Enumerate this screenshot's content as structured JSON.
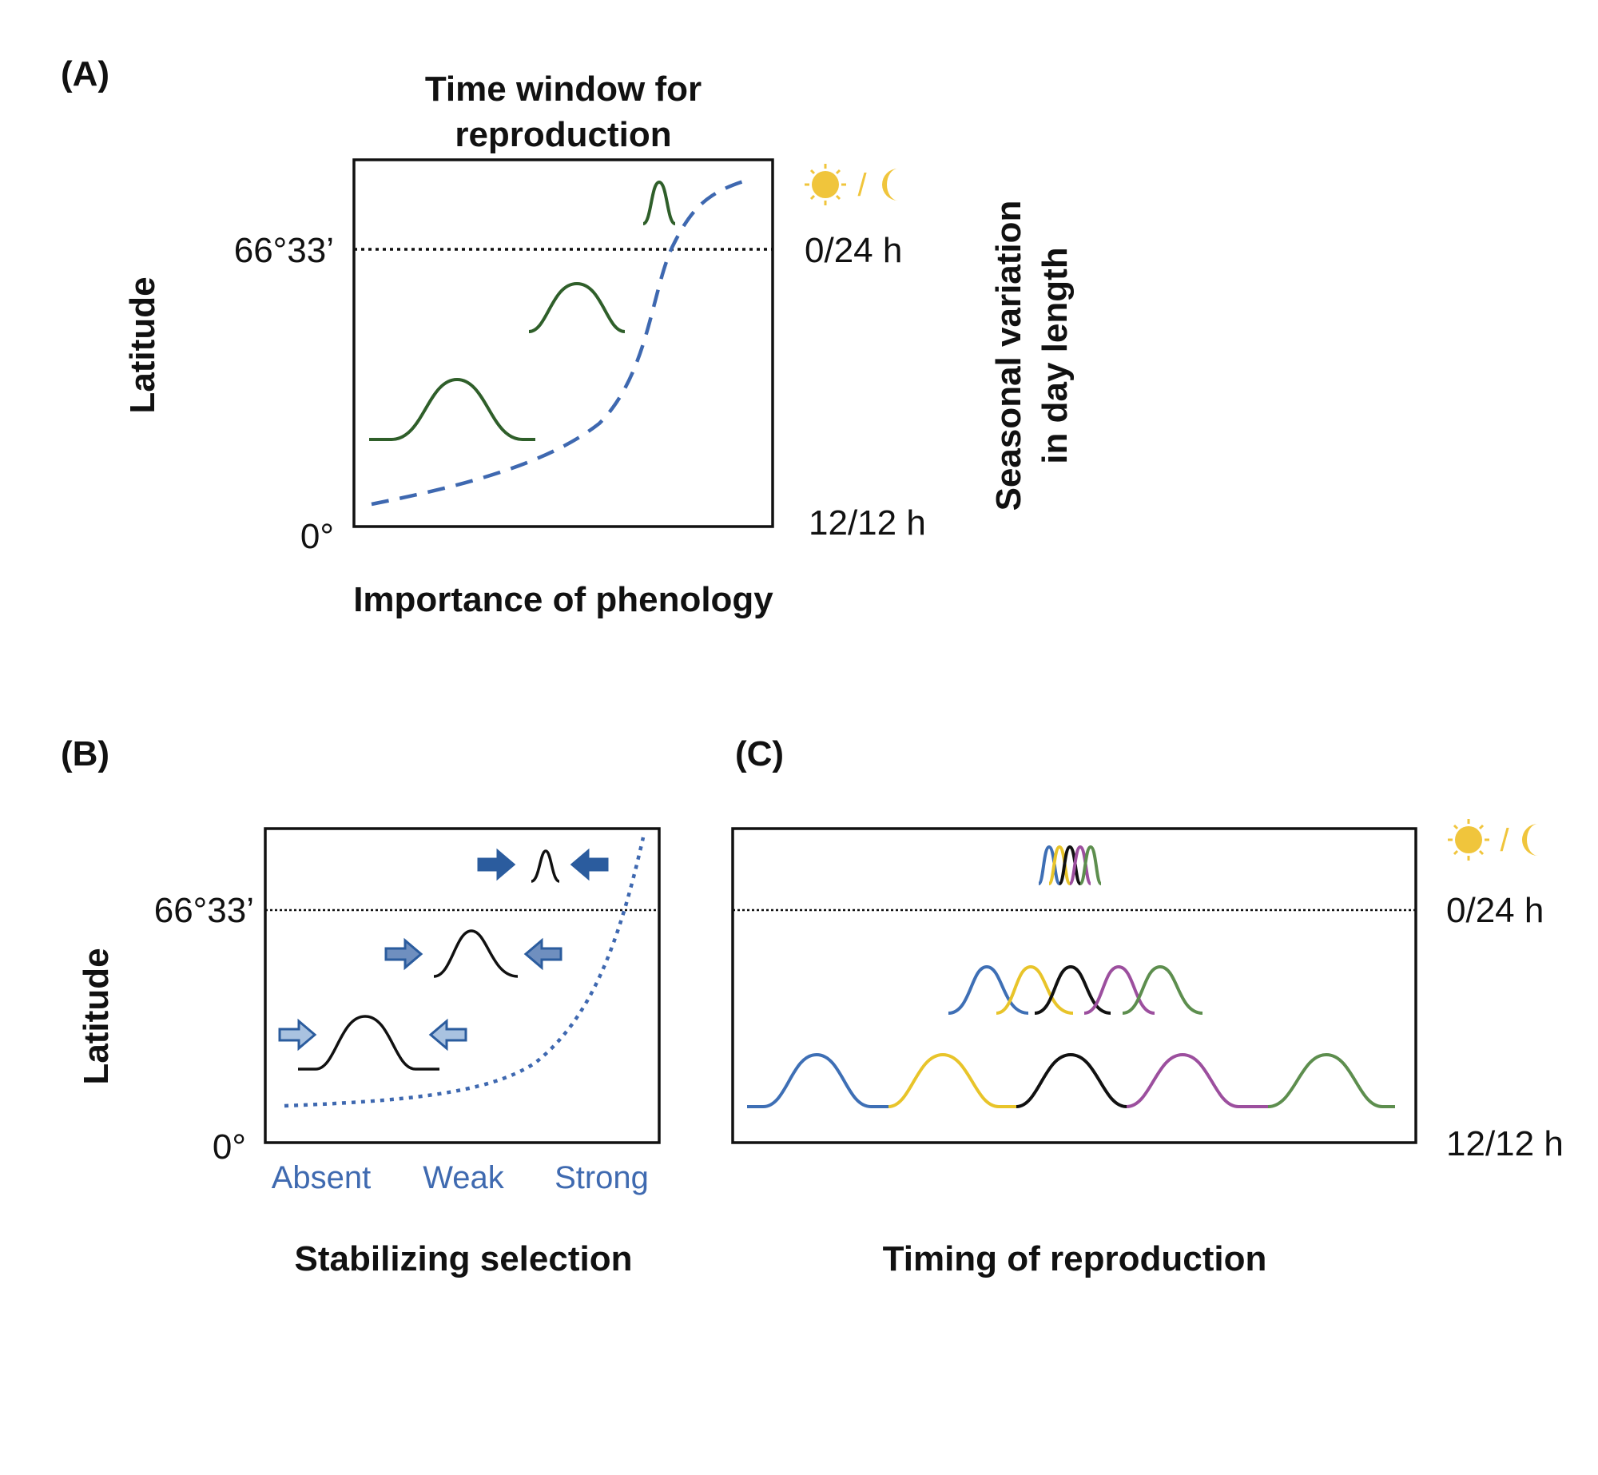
{
  "panel_a": {
    "label": "(A)",
    "title_line1": "Time window for",
    "title_line2": "reproduction",
    "y_axis": "Latitude",
    "x_axis": "Importance of phenology",
    "lat_high": "66°33’",
    "lat_zero": "0°",
    "day_high": "0/24 h",
    "day_low": "12/12 h",
    "right_axis_line1": "Seasonal variation",
    "right_axis_line2": "in day length",
    "day_night_sep": "/"
  },
  "panel_b": {
    "label": "(B)",
    "y_axis": "Latitude",
    "x_axis": "Stabilizing selection",
    "lat_high": "66°33’",
    "lat_zero": "0°",
    "levels": [
      "Absent",
      "Weak",
      "Strong"
    ]
  },
  "panel_c": {
    "label": "(C)",
    "x_axis": "Timing of reproduction",
    "day_high": "0/24 h",
    "day_low": "12/12 h",
    "day_night_sep": "/"
  },
  "colors": {
    "curve_green": "#2f5f2a",
    "dashed_blue": "#3e68b0",
    "arrow_dark": "#2b5c9e",
    "arrow_mid": "#6f8fbf",
    "arrow_light": "#a9c2e0",
    "sun": "#f0c53c",
    "series_blue": "#3e6fb5",
    "series_yellow": "#e8c42a",
    "series_black": "#111111",
    "series_purple": "#9c4f9e",
    "series_green": "#5d8e4e",
    "level_text": "#3f6ab0"
  },
  "icons": [
    "sun-icon",
    "moon-icon",
    "right-arrow-icon",
    "left-arrow-icon"
  ]
}
